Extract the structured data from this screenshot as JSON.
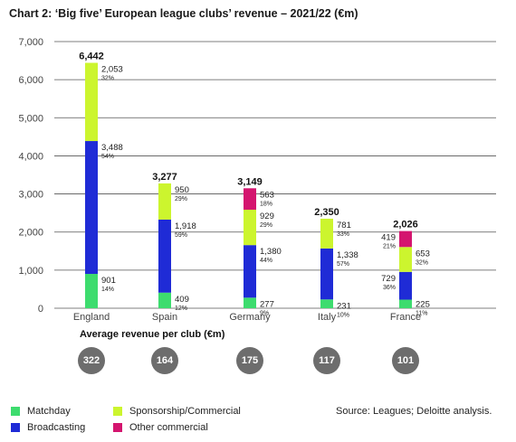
{
  "chart_data": {
    "type": "bar",
    "stacked": true,
    "title": "Chart 2: ‘Big five’ European league clubs’ revenue – 2021/22 (€m)",
    "categories": [
      "England",
      "Spain",
      "Germany",
      "Italy",
      "France"
    ],
    "ylim": [
      0,
      7000
    ],
    "yticks": [
      "0",
      "1,000",
      "2,000",
      "3,000",
      "4,000",
      "5,000",
      "6,000",
      "7,000"
    ],
    "grid": true,
    "legend_position": "bottom-left",
    "totals": [
      "6,442",
      "3,277",
      "3,149",
      "2,350",
      "2,026"
    ],
    "total_values": [
      6442,
      3277,
      3149,
      2350,
      2026
    ],
    "series": [
      {
        "name": "Matchday",
        "color": "#3ddc6e",
        "values": [
          901,
          409,
          277,
          231,
          225
        ],
        "labels": [
          "901",
          "409",
          "277",
          "231",
          "225"
        ],
        "shares": [
          "14%",
          "12%",
          "9%",
          "10%",
          "11%"
        ]
      },
      {
        "name": "Broadcasting",
        "color": "#1f2bd6",
        "values": [
          3488,
          1918,
          1380,
          1338,
          729
        ],
        "labels": [
          "3,488",
          "1,918",
          "1,380",
          "1,338",
          "729"
        ],
        "shares": [
          "54%",
          "59%",
          "44%",
          "57%",
          "36%"
        ]
      },
      {
        "name": "Sponsorship/Commercial",
        "color": "#ccf52e",
        "values": [
          2053,
          950,
          929,
          781,
          653
        ],
        "labels": [
          "2,053",
          "950",
          "929",
          "781",
          "653"
        ],
        "shares": [
          "32%",
          "29%",
          "29%",
          "33%",
          "32%"
        ]
      },
      {
        "name": "Other commercial",
        "color": "#d4156f",
        "values": [
          0,
          0,
          563,
          0,
          419
        ],
        "labels": [
          "",
          "",
          "563",
          "",
          "419"
        ],
        "shares": [
          "",
          "",
          "18%",
          "",
          "21%"
        ]
      }
    ],
    "source": "Source: Leagues; Deloitte analysis."
  },
  "average_revenue": {
    "title": "Average revenue per club (€m)",
    "values": [
      "322",
      "164",
      "175",
      "117",
      "101"
    ]
  }
}
